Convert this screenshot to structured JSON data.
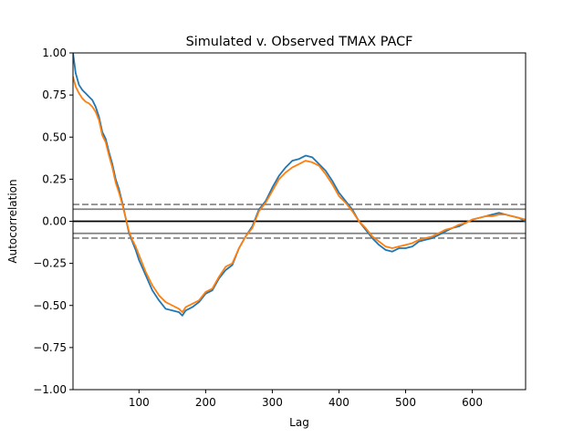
{
  "chart_data": {
    "type": "line",
    "title": "Simulated v. Observed TMAX PACF",
    "xlabel": "Lag",
    "ylabel": "Autocorrelation",
    "xlim": [
      1,
      680
    ],
    "ylim": [
      -1.0,
      1.0
    ],
    "xticks": [
      100,
      200,
      300,
      400,
      500,
      600
    ],
    "yticks": [
      -1.0,
      -0.75,
      -0.5,
      -0.25,
      0.0,
      0.25,
      0.5,
      0.75,
      1.0
    ],
    "ytick_labels": [
      "−1.00",
      "−0.75",
      "−0.50",
      "−0.25",
      "0.00",
      "0.25",
      "0.50",
      "0.75",
      "1.00"
    ],
    "legend": "none",
    "grid": false,
    "reference_lines": [
      {
        "y": 0.0,
        "style": "solid",
        "color": "#000000"
      },
      {
        "y": 0.072,
        "style": "solid",
        "color": "#808080"
      },
      {
        "y": -0.072,
        "style": "solid",
        "color": "#808080"
      },
      {
        "y": 0.1,
        "style": "dashed",
        "color": "#808080"
      },
      {
        "y": -0.1,
        "style": "dashed",
        "color": "#808080"
      }
    ],
    "series": [
      {
        "color": "#1f77b4",
        "x": [
          1,
          5,
          10,
          15,
          20,
          25,
          30,
          35,
          40,
          45,
          50,
          55,
          60,
          65,
          70,
          75,
          80,
          85,
          90,
          95,
          100,
          110,
          120,
          130,
          140,
          150,
          160,
          165,
          170,
          180,
          190,
          200,
          210,
          220,
          230,
          240,
          250,
          260,
          270,
          280,
          290,
          300,
          310,
          320,
          330,
          340,
          350,
          360,
          370,
          380,
          390,
          400,
          410,
          420,
          430,
          440,
          450,
          460,
          470,
          480,
          490,
          500,
          510,
          520,
          530,
          540,
          550,
          560,
          570,
          580,
          590,
          600,
          610,
          620,
          630,
          640,
          650,
          660,
          670,
          680
        ],
        "y": [
          1.0,
          0.88,
          0.81,
          0.78,
          0.76,
          0.74,
          0.72,
          0.68,
          0.62,
          0.53,
          0.49,
          0.41,
          0.34,
          0.25,
          0.19,
          0.11,
          0.02,
          -0.07,
          -0.12,
          -0.17,
          -0.23,
          -0.32,
          -0.41,
          -0.47,
          -0.52,
          -0.53,
          -0.54,
          -0.56,
          -0.53,
          -0.51,
          -0.48,
          -0.43,
          -0.41,
          -0.34,
          -0.29,
          -0.26,
          -0.16,
          -0.09,
          -0.03,
          0.07,
          0.12,
          0.2,
          0.27,
          0.32,
          0.36,
          0.37,
          0.39,
          0.38,
          0.34,
          0.3,
          0.24,
          0.17,
          0.12,
          0.07,
          0.0,
          -0.05,
          -0.1,
          -0.14,
          -0.17,
          -0.18,
          -0.16,
          -0.16,
          -0.15,
          -0.12,
          -0.11,
          -0.1,
          -0.08,
          -0.06,
          -0.04,
          -0.03,
          -0.01,
          0.01,
          0.02,
          0.03,
          0.04,
          0.05,
          0.04,
          0.03,
          0.02,
          0.0
        ]
      },
      {
        "color": "#ff7f0e",
        "x": [
          1,
          5,
          10,
          15,
          20,
          25,
          30,
          35,
          40,
          45,
          50,
          55,
          60,
          65,
          70,
          75,
          80,
          85,
          90,
          95,
          100,
          110,
          120,
          130,
          140,
          150,
          160,
          165,
          170,
          180,
          190,
          200,
          210,
          220,
          230,
          240,
          250,
          260,
          270,
          280,
          290,
          300,
          310,
          320,
          330,
          340,
          350,
          360,
          370,
          380,
          390,
          400,
          410,
          420,
          430,
          440,
          450,
          460,
          470,
          480,
          490,
          500,
          510,
          520,
          530,
          540,
          550,
          560,
          570,
          580,
          590,
          600,
          610,
          620,
          630,
          640,
          650,
          660,
          670,
          680
        ],
        "y": [
          0.86,
          0.8,
          0.76,
          0.73,
          0.71,
          0.7,
          0.68,
          0.65,
          0.6,
          0.51,
          0.47,
          0.39,
          0.32,
          0.23,
          0.17,
          0.1,
          0.02,
          -0.06,
          -0.11,
          -0.15,
          -0.2,
          -0.3,
          -0.38,
          -0.44,
          -0.48,
          -0.5,
          -0.52,
          -0.54,
          -0.51,
          -0.49,
          -0.47,
          -0.42,
          -0.4,
          -0.33,
          -0.27,
          -0.25,
          -0.16,
          -0.09,
          -0.04,
          0.06,
          0.11,
          0.18,
          0.25,
          0.29,
          0.32,
          0.34,
          0.36,
          0.35,
          0.33,
          0.28,
          0.22,
          0.15,
          0.11,
          0.06,
          0.0,
          -0.04,
          -0.09,
          -0.12,
          -0.15,
          -0.16,
          -0.15,
          -0.14,
          -0.13,
          -0.11,
          -0.1,
          -0.09,
          -0.07,
          -0.05,
          -0.04,
          -0.02,
          -0.01,
          0.01,
          0.02,
          0.03,
          0.03,
          0.04,
          0.04,
          0.03,
          0.02,
          0.01
        ]
      }
    ]
  }
}
